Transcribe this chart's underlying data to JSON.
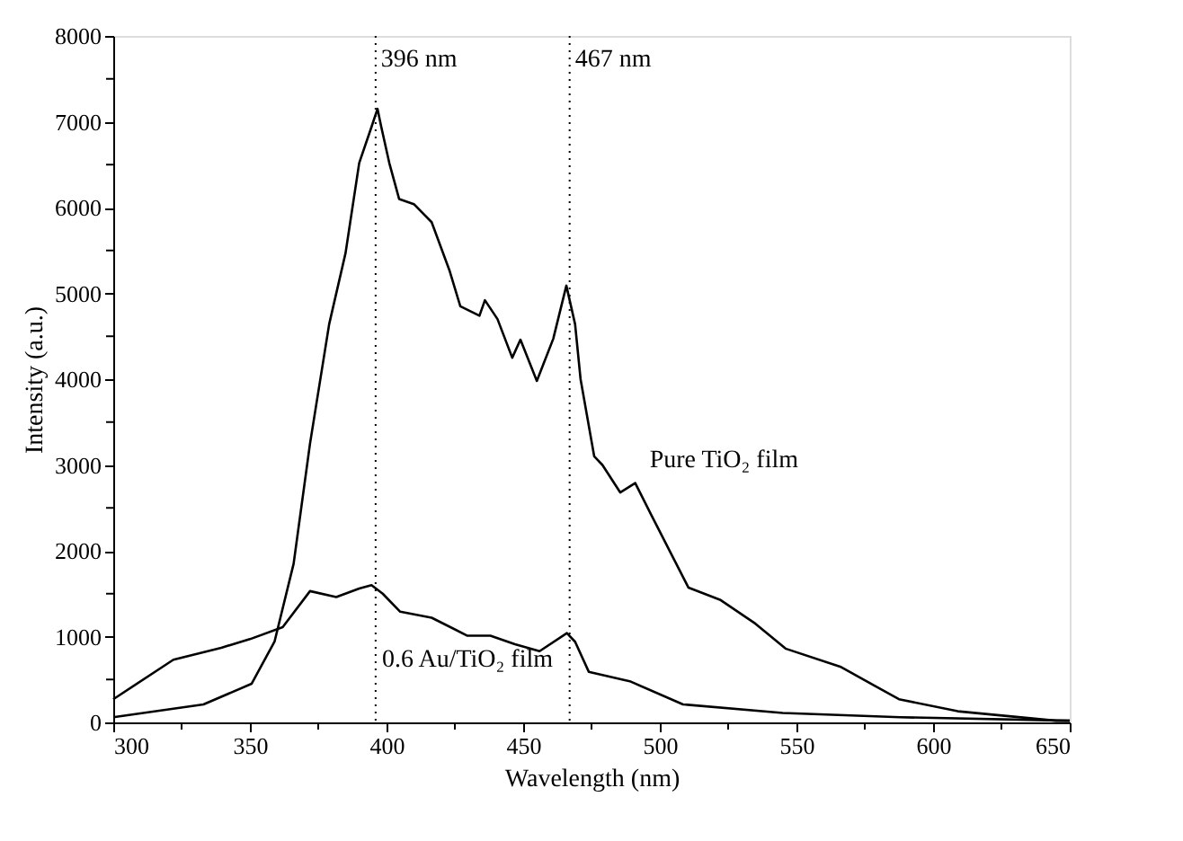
{
  "chart_data": {
    "type": "line",
    "xlabel": "Wavelength (nm)",
    "ylabel": "Intensity (a.u.)",
    "xlim": [
      300,
      650
    ],
    "xticks": [
      300,
      {
        "value": 325,
        "label": null
      },
      350,
      {
        "value": 375,
        "label": null
      },
      400,
      {
        "value": 425,
        "label": null
      },
      450,
      {
        "value": 475,
        "label": null
      },
      500,
      {
        "value": 525,
        "label": null
      },
      550,
      {
        "value": 575,
        "label": null
      },
      600,
      {
        "value": 625,
        "label": null
      },
      650
    ],
    "ylim": [
      0,
      8000
    ],
    "yticks": [
      0,
      {
        "value": 500,
        "label": null
      },
      1000,
      {
        "value": 1500,
        "label": null
      },
      2000,
      {
        "value": 2500,
        "label": null
      },
      3000,
      {
        "value": 3500,
        "label": null
      },
      4000,
      {
        "value": 4500,
        "label": null
      },
      5000,
      {
        "value": 5500,
        "label": null
      },
      6000,
      {
        "value": 6500,
        "label": null
      },
      7000,
      {
        "value": 7500,
        "label": null
      },
      8000
    ],
    "grid": false,
    "marker": "none",
    "line_style": "solid",
    "series": [
      {
        "name": "Pure TiO₂ film",
        "color": "#000000",
        "x": [
          300,
          333,
          350.6,
          359,
          366,
          372,
          379,
          385,
          390,
          394.5,
          396.7,
          398,
          401,
          404.6,
          410,
          416.5,
          423,
          427,
          434,
          436,
          440.6,
          446,
          449,
          455,
          461,
          465.8,
          469,
          471,
          476,
          479,
          485.5,
          491,
          497,
          510.5,
          522,
          535,
          546,
          566,
          587.5,
          609,
          645,
          650
        ],
        "values": [
          60,
          210,
          450,
          940,
          1850,
          3250,
          4640,
          5470,
          6520,
          6940,
          7150,
          6950,
          6520,
          6100,
          6040,
          5830,
          5270,
          4850,
          4740,
          4920,
          4700,
          4250,
          4460,
          3980,
          4470,
          5090,
          4640,
          4000,
          3100,
          3000,
          2680,
          2790,
          2410,
          1570,
          1430,
          1150,
          860,
          650,
          270,
          130,
          20,
          20
        ]
      },
      {
        "name": "0.6 Au/TiO₂ film",
        "color": "#000000",
        "x": [
          300,
          322,
          339.5,
          350,
          362,
          372,
          381.6,
          390,
          394.5,
          398.6,
          405,
          416.5,
          429.6,
          438,
          447,
          456,
          466,
          469,
          474,
          489,
          508.5,
          545,
          588,
          650
        ],
        "values": [
          270,
          730,
          870,
          970,
          1110,
          1530,
          1460,
          1560,
          1600,
          1500,
          1290,
          1220,
          1010,
          1010,
          910,
          830,
          1040,
          940,
          590,
          480,
          210,
          110,
          60,
          20
        ]
      }
    ],
    "ref_lines": [
      {
        "axis": "x",
        "value": 396,
        "label": "396 nm",
        "line_style": "dotted",
        "color": "#000000"
      },
      {
        "axis": "x",
        "value": 467,
        "label": "467 nm",
        "line_style": "dotted",
        "color": "#000000"
      }
    ]
  }
}
